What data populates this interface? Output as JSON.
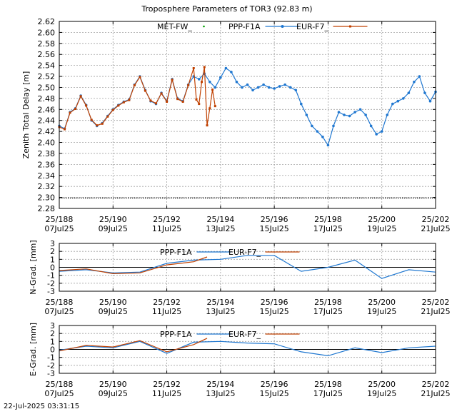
{
  "title": "Troposphere Parameters of TOR3 (92.83 m)",
  "footer_timestamp": "22-Jul-2025 03:31:15",
  "colors": {
    "met": "#00a000",
    "ppp": "#1f77d0",
    "eur": "#c04000",
    "zero": "#000000"
  },
  "x_ticks": [
    {
      "x": 188,
      "top": "25/188",
      "bottom": "07Jul25"
    },
    {
      "x": 190,
      "top": "25/190",
      "bottom": "09Jul25"
    },
    {
      "x": 192,
      "top": "25/192",
      "bottom": "11Jul25"
    },
    {
      "x": 194,
      "top": "25/194",
      "bottom": "13Jul25"
    },
    {
      "x": 196,
      "top": "25/196",
      "bottom": "15Jul25"
    },
    {
      "x": 198,
      "top": "25/198",
      "bottom": "17Jul25"
    },
    {
      "x": 200,
      "top": "25/200",
      "bottom": "19Jul25"
    },
    {
      "x": 202,
      "top": "25/202",
      "bottom": "21Jul25"
    }
  ],
  "chart_data": [
    {
      "type": "line",
      "id": "ztd",
      "ylabel": "Zenith Total Delay [m]",
      "xlim": [
        188,
        202
      ],
      "ylim": [
        2.28,
        2.62
      ],
      "y_ticks": [
        "2.28",
        "2.30",
        "2.32",
        "2.34",
        "2.36",
        "2.38",
        "2.40",
        "2.42",
        "2.44",
        "2.46",
        "2.48",
        "2.50",
        "2.52",
        "2.54",
        "2.56",
        "2.58",
        "2.60",
        "2.62"
      ],
      "grid": true,
      "legend": "top-center",
      "series": [
        {
          "name": "MET-FW_",
          "color_key": "met",
          "marker": "dot",
          "x": [
            188.0,
            188.5,
            189.0,
            189.5,
            190.0,
            190.5,
            191.0,
            191.5,
            192.0,
            192.5,
            193.0,
            193.5,
            194.0,
            194.5,
            195.0,
            195.5,
            196.0,
            196.5,
            197.0,
            197.5,
            198.0,
            198.5,
            199.0,
            199.5,
            200.0,
            200.5,
            201.0,
            201.5,
            202.0
          ],
          "y": [
            2.299,
            2.299,
            2.299,
            2.299,
            2.299,
            2.299,
            2.299,
            2.299,
            2.299,
            2.299,
            2.299,
            2.299,
            2.299,
            2.299,
            2.299,
            2.299,
            2.299,
            2.299,
            2.299,
            2.299,
            2.299,
            2.299,
            2.299,
            2.299,
            2.299,
            2.299,
            2.299,
            2.299,
            2.299
          ]
        },
        {
          "name": "PPP-F1A",
          "color_key": "ppp",
          "marker": "circle",
          "x": [
            188.0,
            188.2,
            188.4,
            188.6,
            188.8,
            189.0,
            189.2,
            189.4,
            189.6,
            189.8,
            190.0,
            190.2,
            190.4,
            190.6,
            190.8,
            191.0,
            191.2,
            191.4,
            191.6,
            191.8,
            192.0,
            192.2,
            192.4,
            192.6,
            192.8,
            193.0,
            193.2,
            193.4,
            193.6,
            193.8,
            194.0,
            194.2,
            194.4,
            194.6,
            194.8,
            195.0,
            195.2,
            195.4,
            195.6,
            195.8,
            196.0,
            196.2,
            196.4,
            196.6,
            196.8,
            197.0,
            197.2,
            197.4,
            197.6,
            197.8,
            198.0,
            198.2,
            198.4,
            198.6,
            198.8,
            199.0,
            199.2,
            199.4,
            199.6,
            199.8,
            200.0,
            200.2,
            200.4,
            200.6,
            200.8,
            201.0,
            201.2,
            201.4,
            201.6,
            201.8,
            202.0
          ],
          "y": [
            2.43,
            2.425,
            2.455,
            2.462,
            2.485,
            2.468,
            2.44,
            2.43,
            2.435,
            2.448,
            2.46,
            2.468,
            2.474,
            2.478,
            2.505,
            2.52,
            2.495,
            2.475,
            2.47,
            2.49,
            2.475,
            2.515,
            2.48,
            2.475,
            2.505,
            2.52,
            2.515,
            2.525,
            2.51,
            2.5,
            2.518,
            2.535,
            2.528,
            2.51,
            2.5,
            2.505,
            2.495,
            2.5,
            2.505,
            2.5,
            2.498,
            2.502,
            2.505,
            2.5,
            2.495,
            2.47,
            2.45,
            2.43,
            2.42,
            2.41,
            2.395,
            2.43,
            2.455,
            2.45,
            2.448,
            2.455,
            2.46,
            2.45,
            2.43,
            2.415,
            2.42,
            2.45,
            2.47,
            2.475,
            2.48,
            2.49,
            2.51,
            2.52,
            2.49,
            2.475,
            2.492
          ]
        },
        {
          "name": "EUR-F7_",
          "color_key": "eur",
          "marker": "square",
          "x": [
            188.0,
            188.2,
            188.4,
            188.6,
            188.8,
            189.0,
            189.2,
            189.4,
            189.6,
            189.8,
            190.0,
            190.2,
            190.4,
            190.6,
            190.8,
            191.0,
            191.2,
            191.4,
            191.6,
            191.8,
            192.0,
            192.2,
            192.4,
            192.6,
            192.8,
            193.0,
            193.1,
            193.2,
            193.3,
            193.4,
            193.5,
            193.6,
            193.7,
            193.8
          ],
          "y": [
            2.428,
            2.424,
            2.454,
            2.461,
            2.484,
            2.467,
            2.441,
            2.431,
            2.434,
            2.447,
            2.459,
            2.467,
            2.473,
            2.477,
            2.504,
            2.519,
            2.494,
            2.476,
            2.471,
            2.489,
            2.474,
            2.514,
            2.479,
            2.474,
            2.504,
            2.535,
            2.478,
            2.47,
            2.51,
            2.537,
            2.431,
            2.462,
            2.496,
            2.466
          ]
        }
      ]
    },
    {
      "type": "line",
      "id": "ngrad",
      "ylabel": "N-Grad. [mm]",
      "xlim": [
        188,
        202
      ],
      "ylim": [
        -3,
        3
      ],
      "y_ticks": [
        "-3",
        "-2",
        "-1",
        "0",
        "1",
        "2",
        "3"
      ],
      "grid": true,
      "legend": "top-center",
      "series": [
        {
          "name": "PPP-F1A",
          "color_key": "ppp",
          "x": [
            188.0,
            189.0,
            190.0,
            191.0,
            192.0,
            193.0,
            194.0,
            195.0,
            196.0,
            197.0,
            198.0,
            199.0,
            200.0,
            201.0,
            202.0
          ],
          "y": [
            -0.5,
            -0.3,
            -0.7,
            -0.6,
            0.5,
            0.9,
            1.0,
            1.5,
            1.5,
            -0.5,
            0.0,
            0.9,
            -1.4,
            -0.3,
            -0.6
          ]
        },
        {
          "name": "EUR-F7_",
          "color_key": "eur",
          "x": [
            188.0,
            189.0,
            190.0,
            191.0,
            192.0,
            193.0,
            193.5
          ],
          "y": [
            -0.4,
            -0.2,
            -0.8,
            -0.7,
            0.3,
            0.7,
            1.3
          ]
        }
      ]
    },
    {
      "type": "line",
      "id": "egrad",
      "ylabel": "E-Grad. [mm]",
      "xlim": [
        188,
        202
      ],
      "ylim": [
        -3,
        3
      ],
      "y_ticks": [
        "-3",
        "-2",
        "-1",
        "0",
        "1",
        "2",
        "3"
      ],
      "grid": true,
      "legend": "top-center",
      "series": [
        {
          "name": "PPP-F1A",
          "color_key": "ppp",
          "x": [
            188.0,
            189.0,
            190.0,
            191.0,
            192.0,
            193.0,
            194.0,
            195.0,
            196.0,
            197.0,
            198.0,
            199.0,
            200.0,
            201.0,
            202.0
          ],
          "y": [
            -0.1,
            0.4,
            0.2,
            1.0,
            -0.5,
            0.9,
            1.0,
            0.8,
            0.7,
            -0.3,
            -0.8,
            0.2,
            -0.4,
            0.2,
            0.4
          ]
        },
        {
          "name": "EUR-F7_",
          "color_key": "eur",
          "x": [
            188.0,
            189.0,
            190.0,
            191.0,
            192.0,
            193.0,
            193.5
          ],
          "y": [
            -0.2,
            0.5,
            0.3,
            1.1,
            -0.3,
            0.6,
            1.4
          ]
        }
      ]
    }
  ]
}
